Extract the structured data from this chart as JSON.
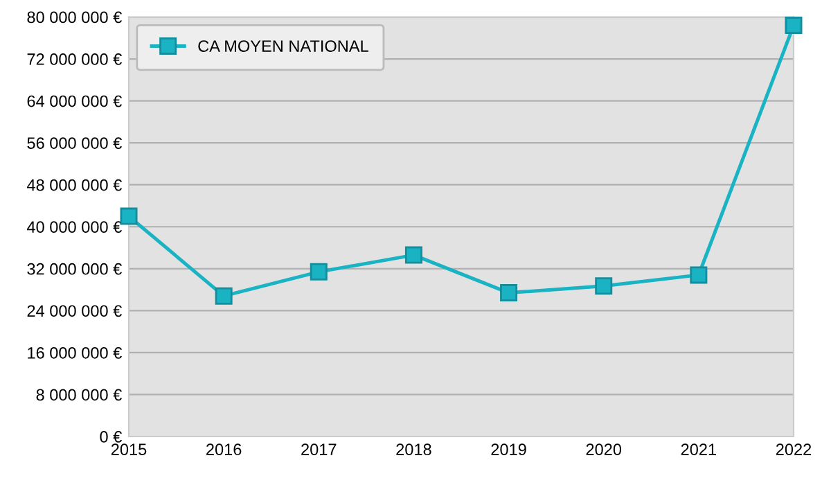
{
  "chart_data": {
    "type": "line",
    "x": [
      2015,
      2016,
      2017,
      2018,
      2019,
      2020,
      2021,
      2022
    ],
    "series": [
      {
        "name": "CA MOYEN NATIONAL",
        "color": "#1ab3c4",
        "values": [
          42000000,
          26800000,
          31400000,
          34600000,
          27400000,
          28700000,
          30800000,
          78400000
        ]
      }
    ],
    "xlim": [
      2015,
      2022
    ],
    "xticks": [
      2015,
      2016,
      2017,
      2018,
      2019,
      2020,
      2021,
      2022
    ],
    "ylim": [
      0,
      80000000
    ],
    "yticks": [
      {
        "value": 0,
        "label": "0 €"
      },
      {
        "value": 8000000,
        "label": "8 000 000 €"
      },
      {
        "value": 16000000,
        "label": "16 000 000 €"
      },
      {
        "value": 24000000,
        "label": "24 000 000 €"
      },
      {
        "value": 32000000,
        "label": "32 000 000 €"
      },
      {
        "value": 40000000,
        "label": "40 000 000 €"
      },
      {
        "value": 48000000,
        "label": "48 000 000 €"
      },
      {
        "value": 56000000,
        "label": "56 000 000 €"
      },
      {
        "value": 64000000,
        "label": "64 000 000 €"
      },
      {
        "value": 72000000,
        "label": "72 000 000 €"
      },
      {
        "value": 80000000,
        "label": "80 000 000 €"
      }
    ],
    "grid": "y",
    "legend": "top left",
    "marker": "square",
    "line_style": "solid"
  }
}
